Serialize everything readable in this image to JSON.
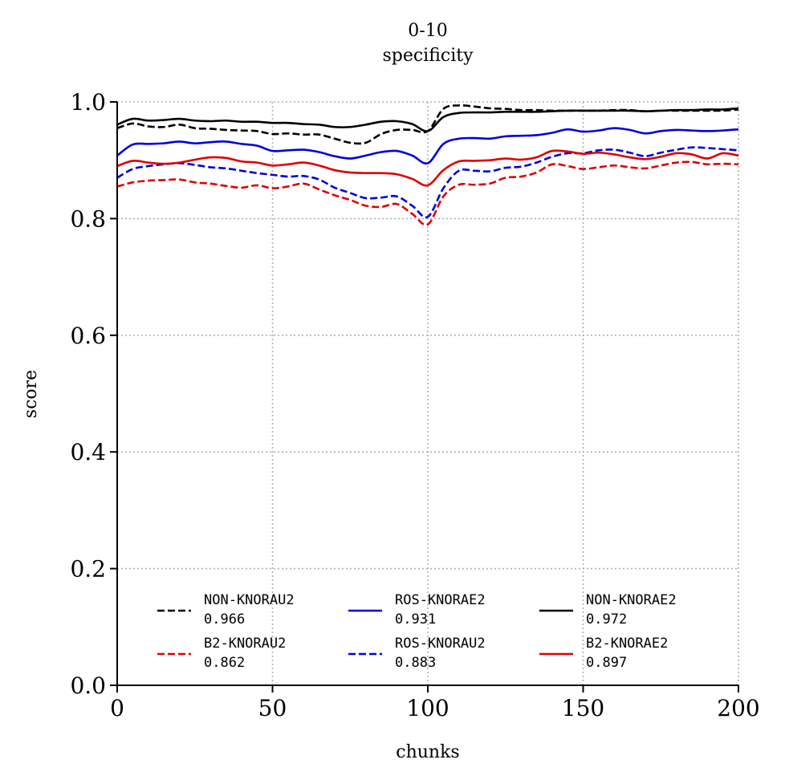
{
  "chart_data": {
    "type": "line",
    "title": "0-10",
    "subtitle": "specificity",
    "xlabel": "chunks",
    "ylabel": "score",
    "xlim": [
      0,
      200
    ],
    "ylim": [
      0.0,
      1.0
    ],
    "xticks": [
      0,
      50,
      100,
      150,
      200
    ],
    "yticks": [
      0.0,
      0.2,
      0.4,
      0.6,
      0.8,
      1.0
    ],
    "xtick_labels": [
      "0",
      "50",
      "100",
      "150",
      "200"
    ],
    "ytick_labels": [
      "0.0",
      "0.2",
      "0.4",
      "0.6",
      "0.8",
      "1.0"
    ],
    "grid": true,
    "legend_position": "lower-center",
    "x": [
      0,
      5,
      10,
      15,
      20,
      25,
      30,
      35,
      40,
      45,
      50,
      55,
      60,
      65,
      70,
      75,
      80,
      85,
      90,
      95,
      100,
      105,
      110,
      115,
      120,
      125,
      130,
      135,
      140,
      145,
      150,
      155,
      160,
      165,
      170,
      175,
      180,
      185,
      190,
      195,
      200
    ],
    "series": [
      {
        "name": "NON-KNORAU2",
        "score": "0.966",
        "color": "#000000",
        "dash": "dashed",
        "values": [
          0.955,
          0.963,
          0.958,
          0.957,
          0.961,
          0.955,
          0.954,
          0.952,
          0.951,
          0.95,
          0.945,
          0.946,
          0.944,
          0.944,
          0.937,
          0.93,
          0.93,
          0.945,
          0.952,
          0.952,
          0.95,
          0.988,
          0.994,
          0.992,
          0.989,
          0.988,
          0.986,
          0.986,
          0.985,
          0.985,
          0.985,
          0.985,
          0.986,
          0.986,
          0.984,
          0.985,
          0.985,
          0.985,
          0.985,
          0.985,
          0.987
        ]
      },
      {
        "name": "NON-KNORAE2",
        "score": "0.972",
        "color": "#000000",
        "dash": "solid",
        "values": [
          0.961,
          0.971,
          0.968,
          0.969,
          0.971,
          0.968,
          0.967,
          0.968,
          0.966,
          0.966,
          0.964,
          0.964,
          0.962,
          0.961,
          0.957,
          0.957,
          0.961,
          0.966,
          0.967,
          0.962,
          0.95,
          0.974,
          0.981,
          0.982,
          0.982,
          0.983,
          0.983,
          0.983,
          0.984,
          0.985,
          0.985,
          0.985,
          0.985,
          0.985,
          0.984,
          0.985,
          0.986,
          0.986,
          0.987,
          0.987,
          0.989
        ]
      },
      {
        "name": "ROS-KNORAE2",
        "score": "0.931",
        "color": "#0000dd",
        "dash": "solid",
        "values": [
          0.908,
          0.927,
          0.928,
          0.929,
          0.932,
          0.929,
          0.931,
          0.932,
          0.928,
          0.925,
          0.916,
          0.917,
          0.918,
          0.914,
          0.907,
          0.903,
          0.908,
          0.914,
          0.916,
          0.908,
          0.895,
          0.928,
          0.937,
          0.938,
          0.937,
          0.941,
          0.942,
          0.943,
          0.947,
          0.953,
          0.949,
          0.951,
          0.955,
          0.952,
          0.946,
          0.95,
          0.952,
          0.951,
          0.95,
          0.951,
          0.953
        ]
      },
      {
        "name": "ROS-KNORAU2",
        "score": "0.883",
        "color": "#0000dd",
        "dash": "dashed",
        "values": [
          0.87,
          0.885,
          0.89,
          0.893,
          0.895,
          0.892,
          0.888,
          0.886,
          0.882,
          0.878,
          0.875,
          0.872,
          0.873,
          0.867,
          0.853,
          0.844,
          0.835,
          0.836,
          0.838,
          0.822,
          0.803,
          0.852,
          0.882,
          0.882,
          0.881,
          0.887,
          0.889,
          0.896,
          0.906,
          0.912,
          0.912,
          0.917,
          0.918,
          0.913,
          0.907,
          0.913,
          0.918,
          0.922,
          0.921,
          0.919,
          0.917
        ]
      },
      {
        "name": "B2-KNORAE2",
        "score": "0.897",
        "color": "#dd0000",
        "dash": "solid",
        "values": [
          0.89,
          0.899,
          0.896,
          0.894,
          0.896,
          0.901,
          0.905,
          0.904,
          0.898,
          0.896,
          0.891,
          0.893,
          0.896,
          0.891,
          0.883,
          0.879,
          0.878,
          0.878,
          0.876,
          0.868,
          0.857,
          0.883,
          0.898,
          0.899,
          0.9,
          0.903,
          0.901,
          0.905,
          0.916,
          0.915,
          0.911,
          0.913,
          0.91,
          0.905,
          0.902,
          0.906,
          0.912,
          0.91,
          0.903,
          0.912,
          0.908
        ]
      },
      {
        "name": "B2-KNORAU2",
        "score": "0.862",
        "color": "#dd0000",
        "dash": "dashed",
        "values": [
          0.855,
          0.862,
          0.865,
          0.866,
          0.867,
          0.862,
          0.86,
          0.856,
          0.853,
          0.857,
          0.852,
          0.855,
          0.86,
          0.85,
          0.84,
          0.832,
          0.822,
          0.82,
          0.825,
          0.808,
          0.79,
          0.838,
          0.858,
          0.858,
          0.86,
          0.87,
          0.872,
          0.879,
          0.893,
          0.89,
          0.885,
          0.888,
          0.891,
          0.888,
          0.886,
          0.891,
          0.896,
          0.897,
          0.893,
          0.894,
          0.893
        ]
      }
    ],
    "legend_order": [
      "NON-KNORAU2",
      "B2-KNORAU2",
      "ROS-KNORAE2",
      "ROS-KNORAU2",
      "NON-KNORAE2",
      "B2-KNORAE2"
    ]
  }
}
